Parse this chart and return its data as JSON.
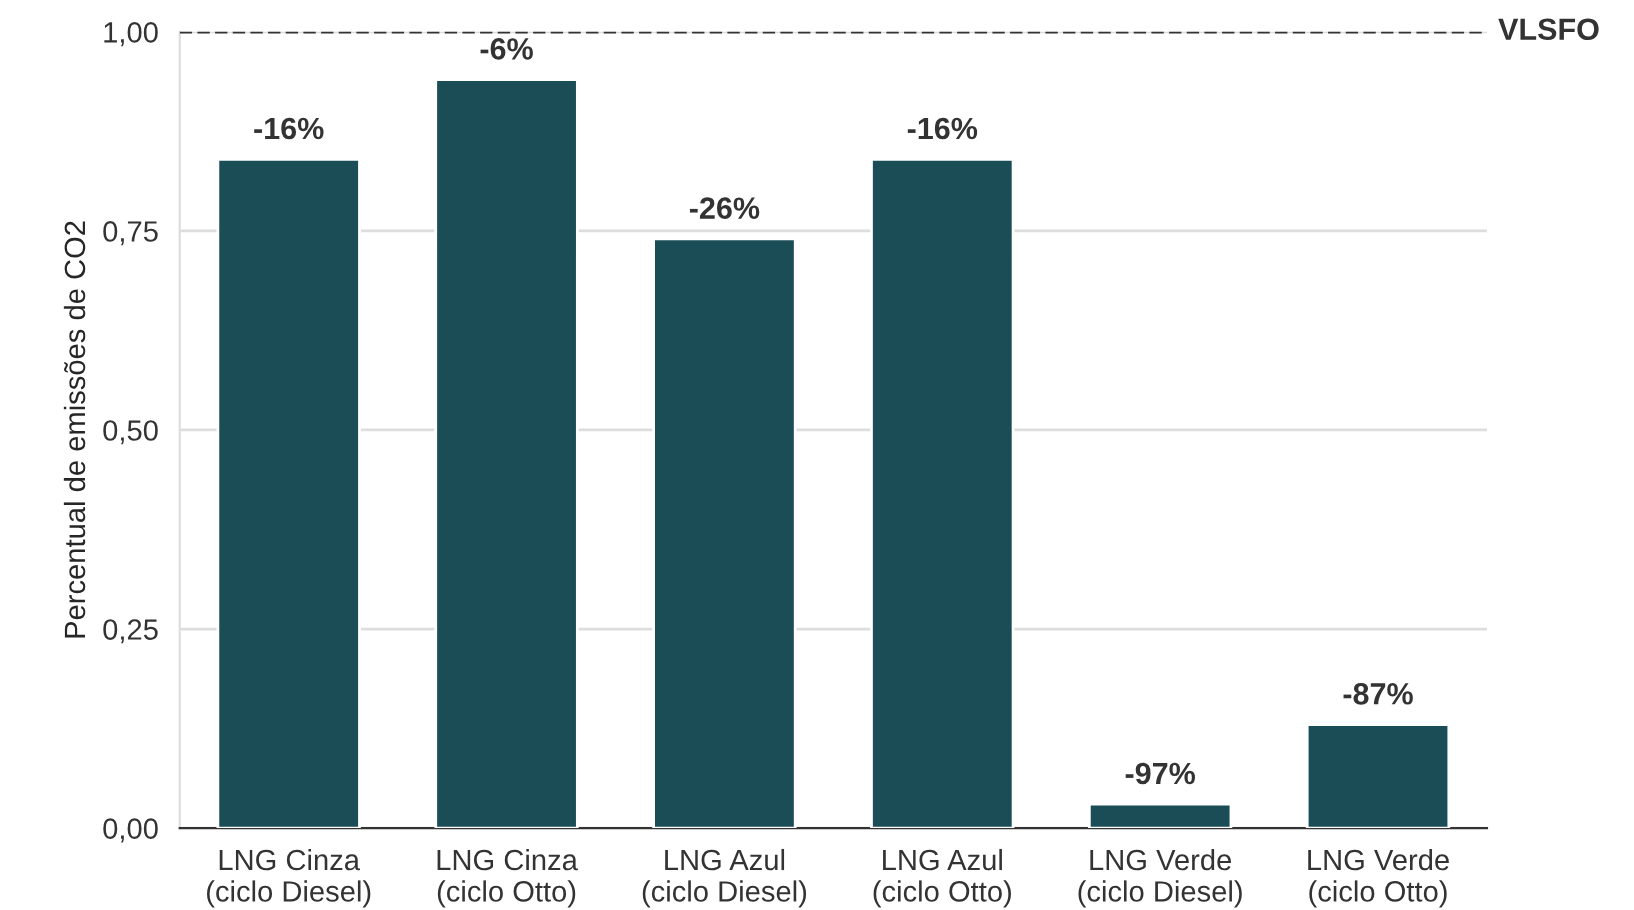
{
  "chart_data": {
    "type": "bar",
    "ylabel": "Percentual de emissões de CO2",
    "categories": [
      "LNG Cinza\n(ciclo Diesel)",
      "LNG Cinza\n(ciclo Otto)",
      "LNG Azul\n(ciclo Diesel)",
      "LNG Azul\n(ciclo Otto)",
      "LNG Verde\n(ciclo Diesel)",
      "LNG Verde\n(ciclo Otto)"
    ],
    "values": [
      0.84,
      0.94,
      0.74,
      0.84,
      0.03,
      0.13
    ],
    "annotations": [
      {
        "text": "-16%",
        "x": "LNG Cinza\n(ciclo Diesel)",
        "y": 0.84
      },
      {
        "text": "-6%",
        "x": "LNG Cinza\n(ciclo Otto)",
        "y": 0.94
      },
      {
        "text": "-26%",
        "x": "LNG Azul\n(ciclo Diesel)",
        "y": 0.74
      },
      {
        "text": "-16%",
        "x": "LNG Azul\n(ciclo Otto)",
        "y": 0.84
      },
      {
        "text": "-97%",
        "x": "LNG Verde\n(ciclo Diesel)",
        "y": 0.03
      },
      {
        "text": "-87%",
        "x": "LNG Verde\n(ciclo Otto)",
        "y": 0.13
      }
    ],
    "color": "#1b4d57",
    "ylim": [
      0,
      1
    ],
    "yticks": [
      {
        "value": 0,
        "label": "0,00"
      },
      {
        "value": 0.25,
        "label": "0,25"
      },
      {
        "value": 0.5,
        "label": "0,50"
      },
      {
        "value": 0.75,
        "label": "0,75"
      },
      {
        "value": 1,
        "label": "1,00"
      }
    ],
    "grid": "y",
    "ref_lines": [
      {
        "axis": "y",
        "value": 1,
        "label": "VLSFO",
        "color": "#333333",
        "line_style": "dashed"
      }
    ]
  }
}
